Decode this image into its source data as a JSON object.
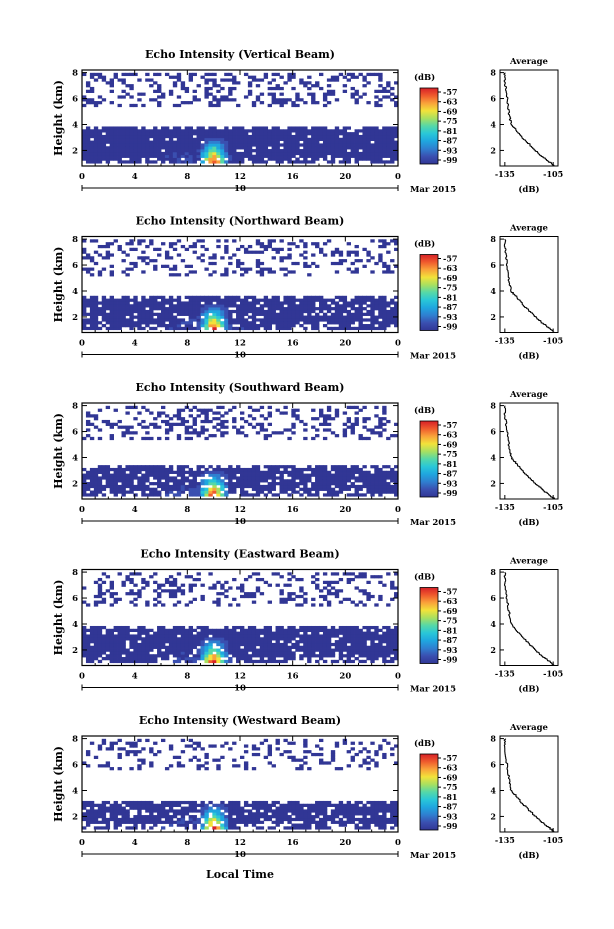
{
  "figure": {
    "date_label": "Mar 2015",
    "day_label": "10",
    "x_axis_label": "Local Time",
    "y_axis_label": "Height (km)",
    "colorbar_unit": "(dB)",
    "colorbar_ticks": [
      "-57",
      "-63",
      "-69",
      "-75",
      "-81",
      "-87",
      "-93",
      "-99"
    ],
    "avg_title": "Average",
    "avg_xlabel": "(dB)",
    "colors": {
      "background": "#ffffff",
      "colorscale": [
        "#313695",
        "#3a4fb0",
        "#2f7fd0",
        "#1fa6df",
        "#29c7d8",
        "#55d8a8",
        "#a8e060",
        "#f2e23a",
        "#f9a23a",
        "#ef5a2d",
        "#d72027"
      ]
    }
  },
  "chart_data": [
    {
      "type": "heatmap",
      "title": "Echo Intensity (Vertical Beam)",
      "xlabel": "",
      "ylabel": "Height (km)",
      "x_ticks": [
        "0",
        "4",
        "8",
        "12",
        "16",
        "20",
        "0"
      ],
      "y_ticks": [
        "2",
        "4",
        "6",
        "8"
      ],
      "xlim": [
        0,
        24
      ],
      "ylim": [
        0.8,
        8.2
      ],
      "colorbar": {
        "unit": "(dB)",
        "range": [
          -99,
          -57
        ]
      },
      "average": {
        "title": "Average",
        "xlabel": "(dB)",
        "x_ticks": [
          "-135",
          "-105"
        ],
        "y_ticks": [
          "2",
          "4",
          "6",
          "8"
        ],
        "profile": [
          [
            -104,
            0.8
          ],
          [
            -108,
            1.2
          ],
          [
            -114,
            1.8
          ],
          [
            -119,
            2.4
          ],
          [
            -124,
            3.0
          ],
          [
            -128,
            3.6
          ],
          [
            -131,
            4.0
          ],
          [
            -132,
            4.6
          ],
          [
            -133,
            5.4
          ],
          [
            -134,
            6.4
          ],
          [
            -135,
            7.4
          ],
          [
            -135,
            8.0
          ]
        ]
      },
      "cloud_layers": [
        {
          "base_km": 1.0,
          "top_km": 3.8,
          "coverage": 0.97
        },
        {
          "base_km": 5.4,
          "top_km": 8.0,
          "coverage": 0.3
        }
      ],
      "peak": {
        "time_h": 10,
        "value_db": -57
      }
    },
    {
      "type": "heatmap",
      "title": "Echo Intensity (Northward Beam)",
      "xlabel": "",
      "ylabel": "Height (km)",
      "x_ticks": [
        "0",
        "4",
        "8",
        "12",
        "16",
        "20",
        "0"
      ],
      "y_ticks": [
        "2",
        "4",
        "6",
        "8"
      ],
      "xlim": [
        0,
        24
      ],
      "ylim": [
        0.8,
        8.2
      ],
      "colorbar": {
        "unit": "(dB)",
        "range": [
          -99,
          -57
        ]
      },
      "average": {
        "title": "Average",
        "xlabel": "(dB)",
        "x_ticks": [
          "-135",
          "-105"
        ],
        "y_ticks": [
          "2",
          "4",
          "6",
          "8"
        ],
        "profile": [
          [
            -104,
            0.8
          ],
          [
            -108,
            1.2
          ],
          [
            -114,
            1.8
          ],
          [
            -119,
            2.4
          ],
          [
            -124,
            3.0
          ],
          [
            -128,
            3.6
          ],
          [
            -131,
            4.0
          ],
          [
            -132,
            4.6
          ],
          [
            -133,
            5.4
          ],
          [
            -134,
            6.4
          ],
          [
            -135,
            7.4
          ],
          [
            -135,
            8.0
          ]
        ]
      },
      "cloud_layers": [
        {
          "base_km": 1.0,
          "top_km": 3.6,
          "coverage": 0.88
        },
        {
          "base_km": 5.2,
          "top_km": 8.0,
          "coverage": 0.28
        }
      ],
      "peak": {
        "time_h": 10,
        "value_db": -57
      }
    },
    {
      "type": "heatmap",
      "title": "Echo Intensity (Southward Beam)",
      "xlabel": "",
      "ylabel": "Height (km)",
      "x_ticks": [
        "0",
        "4",
        "8",
        "12",
        "16",
        "20",
        "0"
      ],
      "y_ticks": [
        "2",
        "4",
        "6",
        "8"
      ],
      "xlim": [
        0,
        24
      ],
      "ylim": [
        0.8,
        8.2
      ],
      "colorbar": {
        "unit": "(dB)",
        "range": [
          -99,
          -57
        ]
      },
      "average": {
        "title": "Average",
        "xlabel": "(dB)",
        "x_ticks": [
          "-135",
          "-105"
        ],
        "y_ticks": [
          "2",
          "4",
          "6",
          "8"
        ],
        "profile": [
          [
            -104,
            0.8
          ],
          [
            -108,
            1.2
          ],
          [
            -114,
            1.8
          ],
          [
            -119,
            2.4
          ],
          [
            -124,
            3.0
          ],
          [
            -128,
            3.6
          ],
          [
            -131,
            4.0
          ],
          [
            -132,
            4.6
          ],
          [
            -133,
            5.4
          ],
          [
            -134,
            6.4
          ],
          [
            -135,
            7.4
          ],
          [
            -135,
            8.0
          ]
        ]
      },
      "cloud_layers": [
        {
          "base_km": 1.0,
          "top_km": 3.4,
          "coverage": 0.82
        },
        {
          "base_km": 5.4,
          "top_km": 8.0,
          "coverage": 0.3
        }
      ],
      "peak": {
        "time_h": 10,
        "value_db": -57
      }
    },
    {
      "type": "heatmap",
      "title": "Echo Intensity (Eastward Beam)",
      "xlabel": "",
      "ylabel": "Height (km)",
      "x_ticks": [
        "0",
        "4",
        "8",
        "12",
        "16",
        "20",
        "0"
      ],
      "y_ticks": [
        "2",
        "4",
        "6",
        "8"
      ],
      "xlim": [
        0,
        24
      ],
      "ylim": [
        0.8,
        8.2
      ],
      "colorbar": {
        "unit": "(dB)",
        "range": [
          -99,
          -57
        ]
      },
      "average": {
        "title": "Average",
        "xlabel": "(dB)",
        "x_ticks": [
          "-135",
          "-105"
        ],
        "y_ticks": [
          "2",
          "4",
          "6",
          "8"
        ],
        "profile": [
          [
            -104,
            0.8
          ],
          [
            -108,
            1.2
          ],
          [
            -114,
            1.8
          ],
          [
            -119,
            2.4
          ],
          [
            -124,
            3.0
          ],
          [
            -128,
            3.6
          ],
          [
            -131,
            4.0
          ],
          [
            -132,
            4.6
          ],
          [
            -133,
            5.4
          ],
          [
            -134,
            6.4
          ],
          [
            -135,
            7.4
          ],
          [
            -135,
            8.0
          ]
        ]
      },
      "cloud_layers": [
        {
          "base_km": 1.0,
          "top_km": 3.8,
          "coverage": 0.9
        },
        {
          "base_km": 5.4,
          "top_km": 8.0,
          "coverage": 0.28
        }
      ],
      "peak": {
        "time_h": 10,
        "value_db": -57
      }
    },
    {
      "type": "heatmap",
      "title": "Echo Intensity (Westward Beam)",
      "xlabel": "Local Time",
      "ylabel": "Height (km)",
      "x_ticks": [
        "0",
        "4",
        "8",
        "12",
        "16",
        "20",
        "0"
      ],
      "y_ticks": [
        "2",
        "4",
        "6",
        "8"
      ],
      "xlim": [
        0,
        24
      ],
      "ylim": [
        0.8,
        8.2
      ],
      "colorbar": {
        "unit": "(dB)",
        "range": [
          -99,
          -57
        ]
      },
      "average": {
        "title": "Average",
        "xlabel": "(dB)",
        "x_ticks": [
          "-135",
          "-105"
        ],
        "y_ticks": [
          "2",
          "4",
          "6",
          "8"
        ],
        "profile": [
          [
            -104,
            0.8
          ],
          [
            -108,
            1.2
          ],
          [
            -114,
            1.8
          ],
          [
            -119,
            2.4
          ],
          [
            -124,
            3.0
          ],
          [
            -128,
            3.6
          ],
          [
            -131,
            4.0
          ],
          [
            -132,
            4.6
          ],
          [
            -133,
            5.4
          ],
          [
            -134,
            6.4
          ],
          [
            -135,
            7.4
          ],
          [
            -135,
            8.0
          ]
        ]
      },
      "cloud_layers": [
        {
          "base_km": 1.0,
          "top_km": 3.2,
          "coverage": 0.85
        },
        {
          "base_km": 5.6,
          "top_km": 8.0,
          "coverage": 0.22
        }
      ],
      "peak": {
        "time_h": 10,
        "value_db": -57
      }
    }
  ]
}
